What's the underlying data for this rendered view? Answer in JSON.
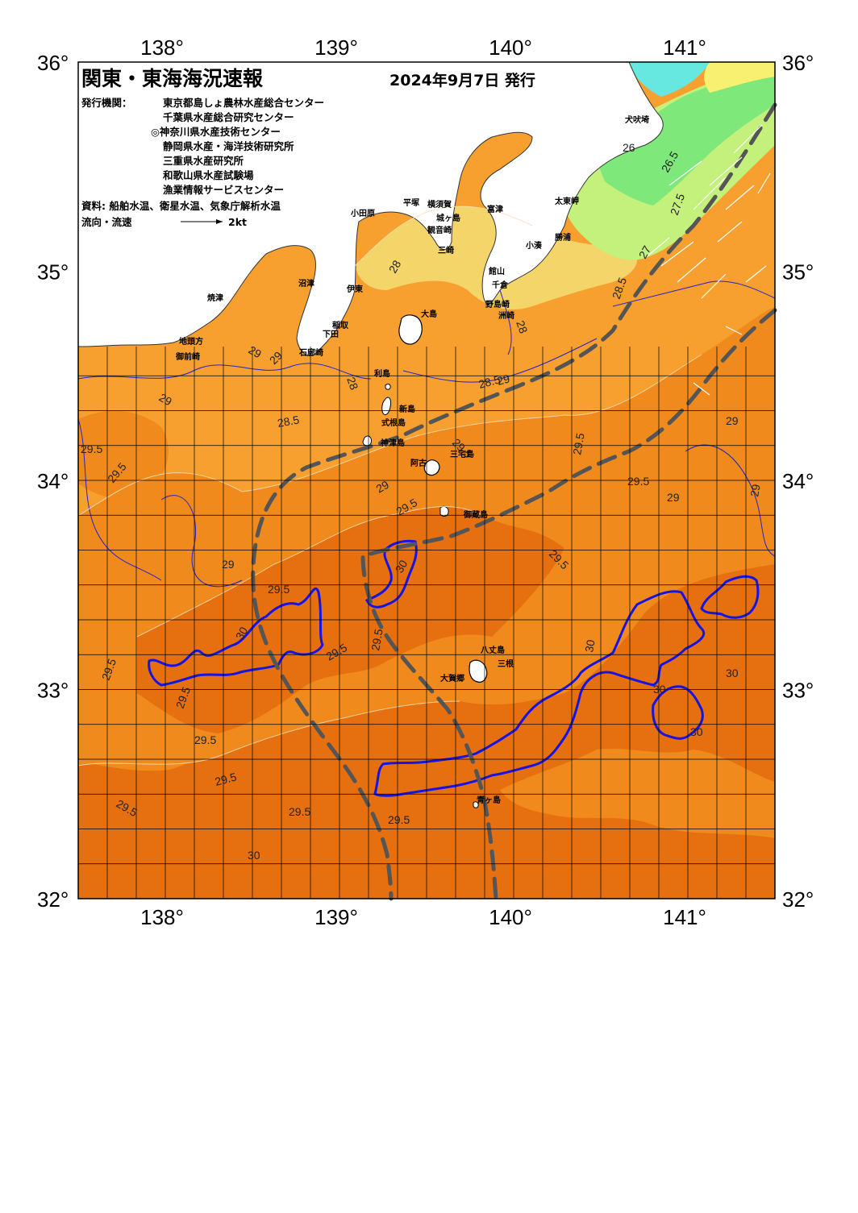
{
  "header": {
    "title": "関東・東海海況速報",
    "date": "2024年9月7日 発行",
    "publisher_label": "発行機関：",
    "publishers": [
      "東京都島しょ農林水産総合センター",
      "千葉県水産総合研究センター",
      "◎神奈川県水産技術センター",
      "静岡県水産・海洋技術研究所",
      "三重県水産研究所",
      "和歌山県水産試験場",
      "漁業情報サービスセンター"
    ],
    "sources": "資料: 船舶水温、衛星水温、気象庁解析水温",
    "current_label": "流向・流速",
    "scale_label": "2kt"
  },
  "axes": {
    "lon_labels": [
      "138°",
      "139°",
      "140°",
      "141°"
    ],
    "lat_labels": [
      "36°",
      "35°",
      "34°",
      "33°",
      "32°"
    ]
  },
  "places": [
    "犬吠埼",
    "太東岬",
    "勝浦",
    "小湊",
    "館山",
    "千倉",
    "野島崎",
    "洲崎",
    "富津",
    "三崎",
    "城ヶ島",
    "観音崎",
    "横須賀",
    "平塚",
    "小田原",
    "沼津",
    "伊東",
    "大島",
    "稲取",
    "下田",
    "石廊崎",
    "御前崎",
    "地頭方",
    "焼津",
    "利島",
    "新島",
    "式根島",
    "神津島",
    "三宅島",
    "御蔵島",
    "阿古",
    "八丈島",
    "三根",
    "大賀郷",
    "青ヶ島"
  ],
  "isotherm_labels": [
    "26",
    "26.5",
    "27",
    "27.5",
    "28",
    "28",
    "28",
    "28.5",
    "28.5",
    "28.5",
    "29",
    "29",
    "29",
    "29",
    "29",
    "29",
    "29",
    "29",
    "29",
    "29.5",
    "29.5",
    "29.5",
    "29.5",
    "29.5",
    "29.5",
    "29.5",
    "29.5",
    "29.5",
    "29.5",
    "29.5",
    "29.5",
    "29.5",
    "29.5",
    "29.5",
    "29.5",
    "29.5",
    "30",
    "30",
    "30",
    "30",
    "30",
    "30",
    "30",
    "30"
  ],
  "colors": {
    "temp_26": "#7ee87a",
    "temp_27": "#c4f07c",
    "temp_28": "#f4d56a",
    "temp_29": "#f7a02f",
    "temp_29_5": "#f08a1c",
    "temp_30": "#e66f0f",
    "contour_30": "#1414e6",
    "kuroshio_axis": "#555555",
    "grid": "#000000",
    "land": "#ffffff"
  }
}
